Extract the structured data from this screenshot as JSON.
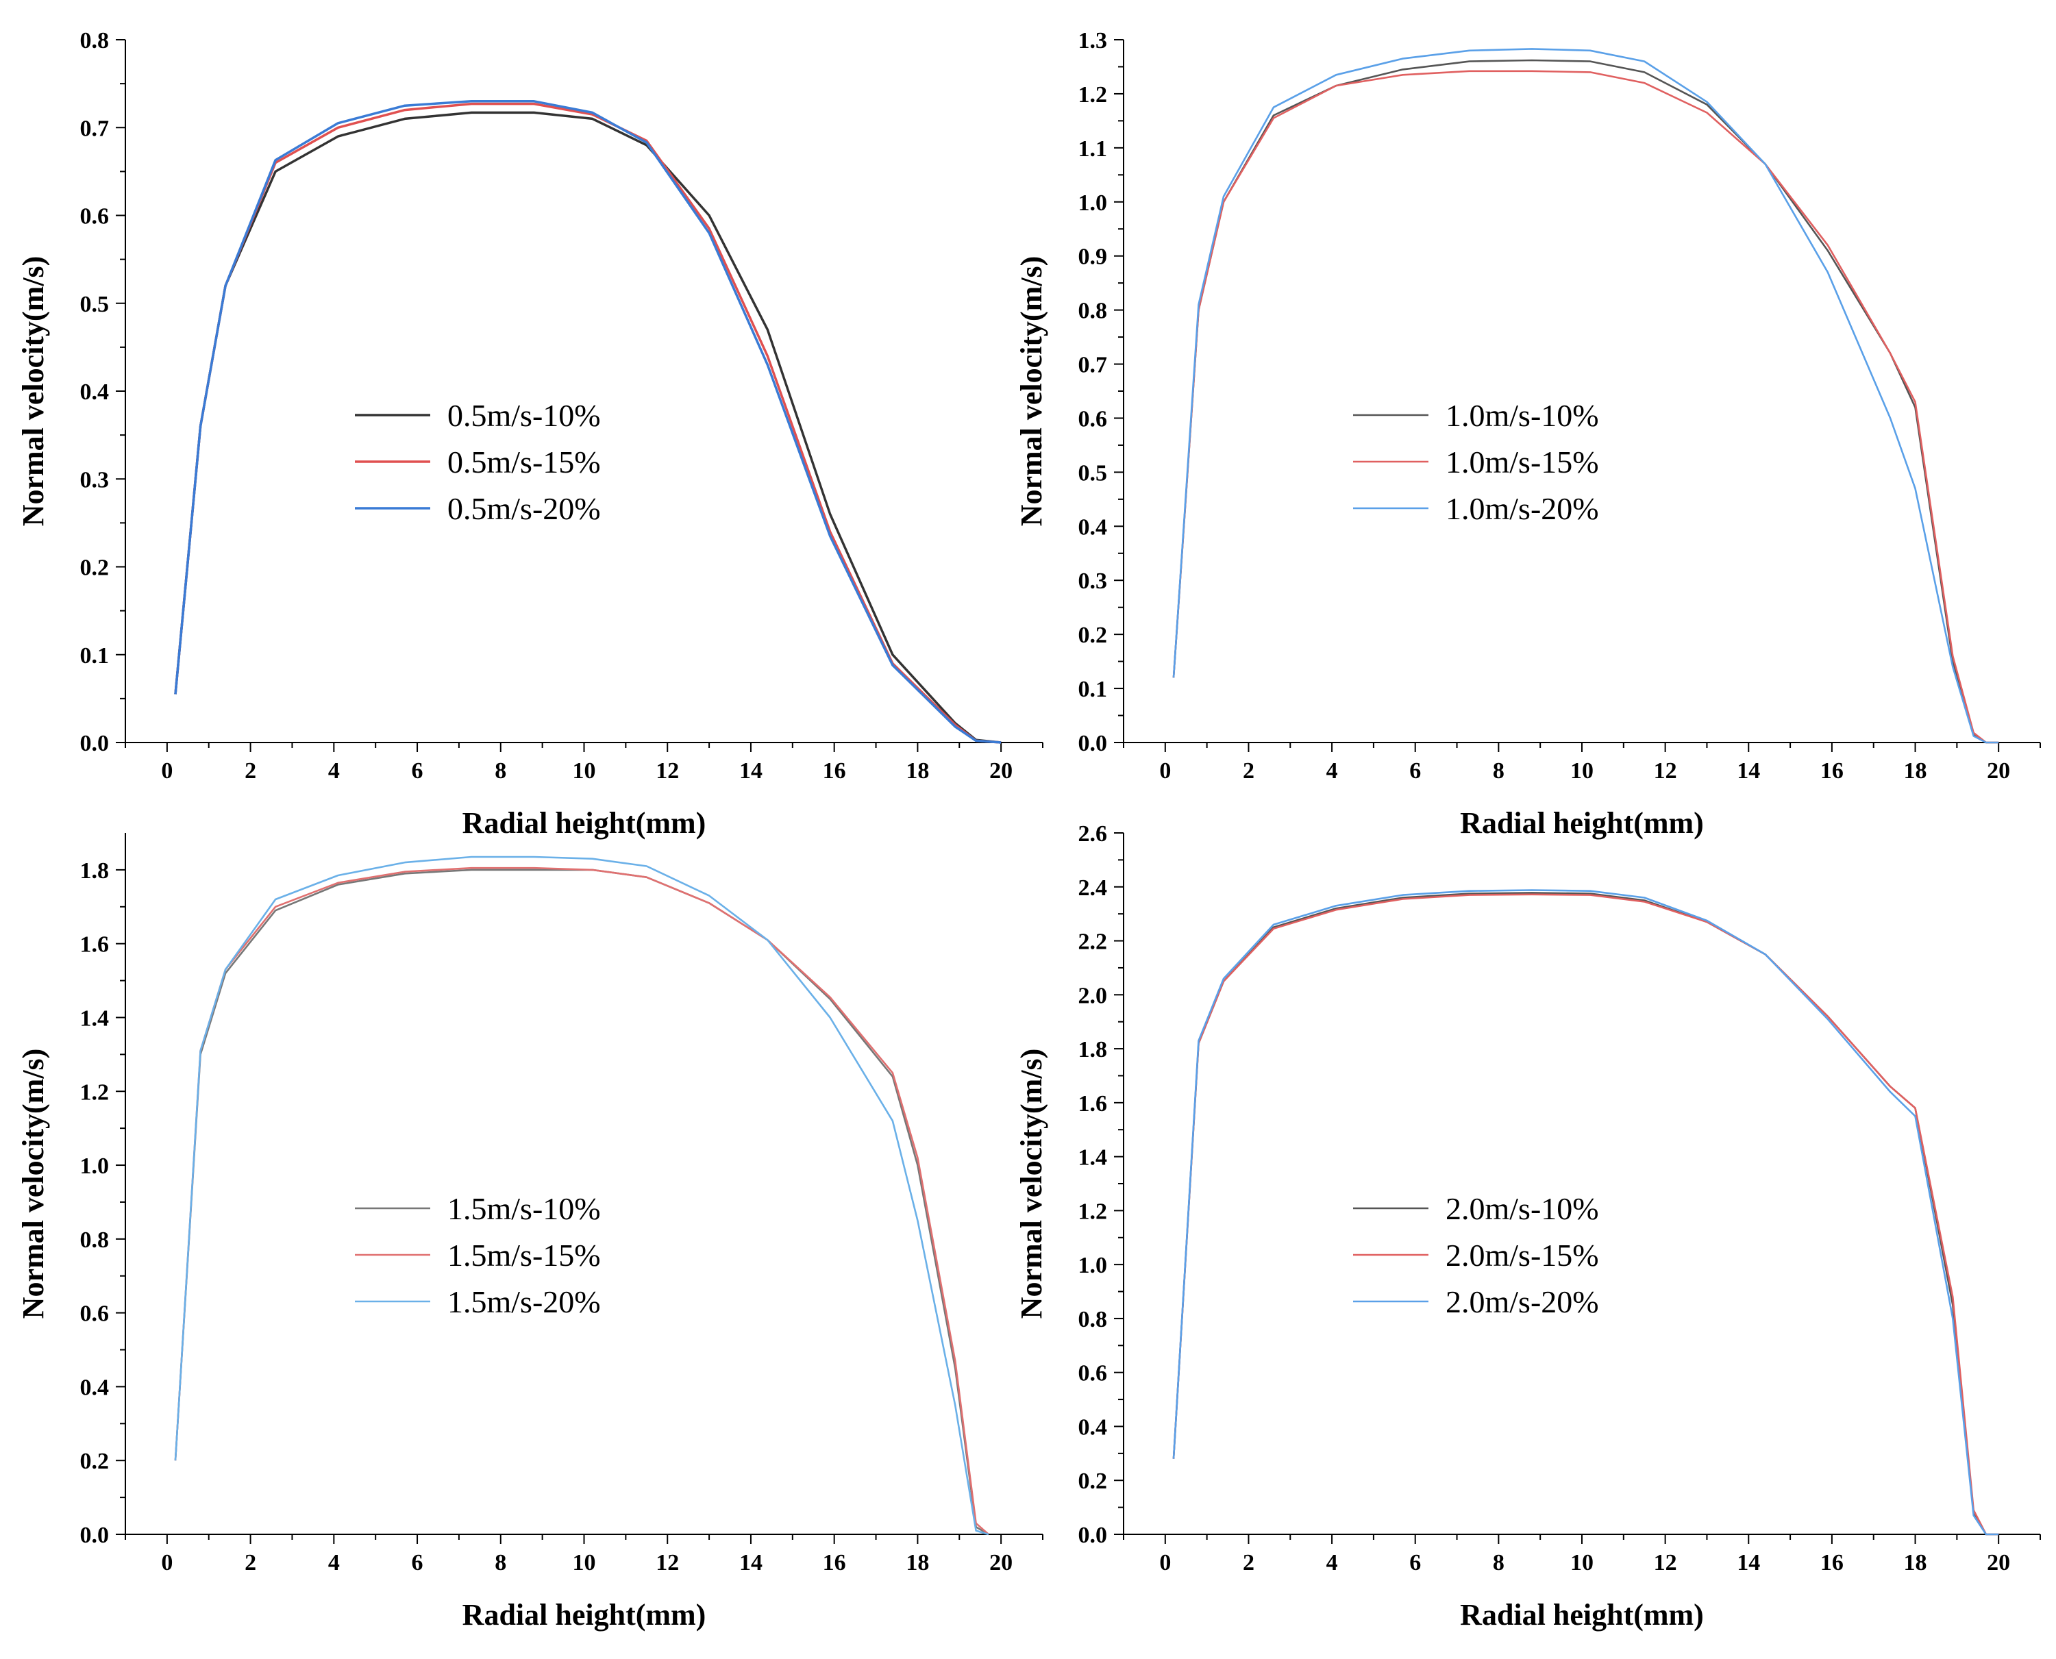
{
  "chart_data": [
    {
      "type": "line",
      "xlabel": "Radial height(mm)",
      "ylabel": "Normal velocity(m/s)",
      "xlim": [
        -1,
        21
      ],
      "ylim": [
        0,
        0.8
      ],
      "xticks": [
        0,
        2,
        4,
        6,
        8,
        10,
        12,
        14,
        16,
        18,
        20
      ],
      "yticks": [
        0.0,
        0.1,
        0.2,
        0.3,
        0.4,
        0.5,
        0.6,
        0.7,
        0.8
      ],
      "ytick_labels": [
        "0.0",
        "0.1",
        "0.2",
        "0.3",
        "0.4",
        "0.5",
        "0.6",
        "0.7",
        "0.8"
      ],
      "legend_position": "center-left",
      "grid": false,
      "x": [
        0.2,
        0.8,
        1.4,
        2.6,
        4.1,
        5.7,
        7.3,
        8.8,
        10.2,
        11.5,
        13.0,
        14.4,
        15.9,
        17.4,
        18.9,
        19.4,
        20.0
      ],
      "series": [
        {
          "name": "0.5m/s-10%",
          "color": "#333333",
          "values": [
            0.055,
            0.36,
            0.52,
            0.65,
            0.69,
            0.71,
            0.717,
            0.717,
            0.71,
            0.68,
            0.6,
            0.47,
            0.26,
            0.1,
            0.022,
            0.003,
            0.0
          ]
        },
        {
          "name": "0.5m/s-15%",
          "color": "#e05050",
          "values": [
            0.055,
            0.36,
            0.52,
            0.66,
            0.7,
            0.72,
            0.727,
            0.727,
            0.715,
            0.685,
            0.585,
            0.44,
            0.24,
            0.09,
            0.02,
            0.002,
            0.0
          ]
        },
        {
          "name": "0.5m/s-20%",
          "color": "#3a7bd5",
          "values": [
            0.055,
            0.36,
            0.52,
            0.663,
            0.705,
            0.725,
            0.73,
            0.73,
            0.717,
            0.683,
            0.58,
            0.43,
            0.235,
            0.088,
            0.018,
            0.002,
            0.0
          ]
        }
      ]
    },
    {
      "type": "line",
      "xlabel": "Radial height(mm)",
      "ylabel": "Normal velocity(m/s)",
      "xlim": [
        -1,
        21
      ],
      "ylim": [
        0,
        1.3
      ],
      "xticks": [
        0,
        2,
        4,
        6,
        8,
        10,
        12,
        14,
        16,
        18,
        20
      ],
      "yticks": [
        0.0,
        0.1,
        0.2,
        0.3,
        0.4,
        0.5,
        0.6,
        0.7,
        0.8,
        0.9,
        1.0,
        1.1,
        1.2,
        1.3
      ],
      "ytick_labels": [
        "0.0",
        "0.1",
        "0.2",
        "0.3",
        "0.4",
        "0.5",
        "0.6",
        "0.7",
        "0.8",
        "0.9",
        "1.0",
        "1.1",
        "1.2",
        "1.3"
      ],
      "legend_position": "center-left",
      "grid": false,
      "x": [
        0.2,
        0.8,
        1.4,
        2.6,
        4.1,
        5.7,
        7.3,
        8.8,
        10.2,
        11.5,
        13.0,
        14.4,
        15.9,
        17.4,
        18.0,
        18.9,
        19.4,
        19.7,
        20.0
      ],
      "series": [
        {
          "name": "1.0m/s-10%",
          "color": "#555555",
          "values": [
            0.12,
            0.8,
            1.0,
            1.16,
            1.215,
            1.245,
            1.26,
            1.262,
            1.26,
            1.24,
            1.18,
            1.07,
            0.91,
            0.72,
            0.62,
            0.15,
            0.015,
            0.0,
            0.0
          ]
        },
        {
          "name": "1.0m/s-15%",
          "color": "#e06060",
          "values": [
            0.12,
            0.8,
            1.0,
            1.155,
            1.215,
            1.235,
            1.242,
            1.242,
            1.24,
            1.22,
            1.165,
            1.07,
            0.92,
            0.72,
            0.63,
            0.16,
            0.018,
            0.0,
            0.0
          ]
        },
        {
          "name": "1.0m/s-20%",
          "color": "#5aa0e8",
          "values": [
            0.12,
            0.81,
            1.01,
            1.175,
            1.235,
            1.265,
            1.28,
            1.283,
            1.28,
            1.26,
            1.185,
            1.07,
            0.87,
            0.6,
            0.47,
            0.14,
            0.012,
            0.0,
            0.0
          ]
        }
      ]
    },
    {
      "type": "line",
      "xlabel": "Radial height(mm)",
      "ylabel": "Normal velocity(m/s)",
      "xlim": [
        -1,
        21
      ],
      "ylim": [
        0,
        1.9
      ],
      "xticks": [
        0,
        2,
        4,
        6,
        8,
        10,
        12,
        14,
        16,
        18,
        20
      ],
      "yticks": [
        0.0,
        0.2,
        0.4,
        0.6,
        0.8,
        1.0,
        1.2,
        1.4,
        1.6,
        1.8
      ],
      "ytick_labels": [
        "0.0",
        "0.2",
        "0.4",
        "0.6",
        "0.8",
        "1.0",
        "1.2",
        "1.4",
        "1.6",
        "1.8"
      ],
      "legend_position": "center-left",
      "grid": false,
      "x": [
        0.2,
        0.8,
        1.4,
        2.6,
        4.1,
        5.7,
        7.3,
        8.8,
        10.2,
        11.5,
        13.0,
        14.4,
        15.9,
        17.4,
        18.0,
        18.9,
        19.4,
        19.7
      ],
      "series": [
        {
          "name": "1.5m/s-10%",
          "color": "#777777",
          "values": [
            0.2,
            1.3,
            1.52,
            1.69,
            1.76,
            1.79,
            1.8,
            1.8,
            1.8,
            1.78,
            1.71,
            1.61,
            1.45,
            1.24,
            1.0,
            0.45,
            0.02,
            0.0
          ]
        },
        {
          "name": "1.5m/s-15%",
          "color": "#e07070",
          "values": [
            0.2,
            1.31,
            1.53,
            1.7,
            1.765,
            1.795,
            1.805,
            1.805,
            1.8,
            1.78,
            1.71,
            1.61,
            1.455,
            1.25,
            1.02,
            0.47,
            0.03,
            0.0
          ]
        },
        {
          "name": "1.5m/s-20%",
          "color": "#6ab0e8",
          "values": [
            0.2,
            1.31,
            1.53,
            1.72,
            1.785,
            1.82,
            1.835,
            1.835,
            1.83,
            1.81,
            1.73,
            1.61,
            1.4,
            1.12,
            0.85,
            0.35,
            0.01,
            0.0
          ]
        }
      ]
    },
    {
      "type": "line",
      "xlabel": "Radial height(mm)",
      "ylabel": "Normal velocity(m/s)",
      "xlim": [
        -1,
        21
      ],
      "ylim": [
        0,
        2.6
      ],
      "xticks": [
        0,
        2,
        4,
        6,
        8,
        10,
        12,
        14,
        16,
        18,
        20
      ],
      "yticks": [
        0.0,
        0.2,
        0.4,
        0.6,
        0.8,
        1.0,
        1.2,
        1.4,
        1.6,
        1.8,
        2.0,
        2.2,
        2.4,
        2.6
      ],
      "ytick_labels": [
        "0.0",
        "0.2",
        "0.4",
        "0.6",
        "0.8",
        "1.0",
        "1.2",
        "1.4",
        "1.6",
        "1.8",
        "2.0",
        "2.2",
        "2.4",
        "2.6"
      ],
      "legend_position": "center-left",
      "grid": false,
      "x": [
        0.2,
        0.8,
        1.4,
        2.6,
        4.1,
        5.7,
        7.3,
        8.8,
        10.2,
        11.5,
        13.0,
        14.4,
        15.9,
        17.4,
        18.0,
        18.9,
        19.4,
        19.7,
        20.0
      ],
      "series": [
        {
          "name": "2.0m/s-10%",
          "color": "#555555",
          "values": [
            0.28,
            1.82,
            2.05,
            2.25,
            2.32,
            2.36,
            2.375,
            2.378,
            2.375,
            2.35,
            2.27,
            2.15,
            1.92,
            1.66,
            1.58,
            0.85,
            0.08,
            0.0,
            0.0
          ]
        },
        {
          "name": "2.0m/s-15%",
          "color": "#e06060",
          "values": [
            0.28,
            1.82,
            2.05,
            2.245,
            2.315,
            2.355,
            2.37,
            2.372,
            2.37,
            2.345,
            2.27,
            2.15,
            1.92,
            1.66,
            1.58,
            0.88,
            0.09,
            0.0,
            0.0
          ]
        },
        {
          "name": "2.0m/s-20%",
          "color": "#5aa0e8",
          "values": [
            0.28,
            1.83,
            2.06,
            2.26,
            2.33,
            2.37,
            2.385,
            2.388,
            2.385,
            2.36,
            2.275,
            2.15,
            1.91,
            1.64,
            1.55,
            0.8,
            0.07,
            0.0,
            0.0
          ]
        }
      ]
    }
  ]
}
